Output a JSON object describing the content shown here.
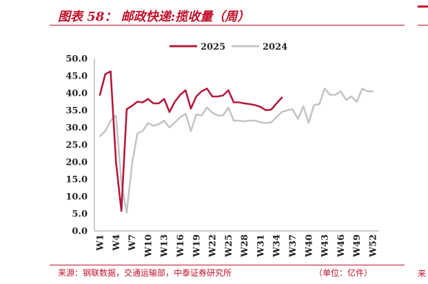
{
  "header": {
    "title": "图表 58：  邮政快递:揽收量（周）"
  },
  "footer": {
    "source": "来源：钢联数据，交通运输部，中泰证券研究所",
    "unit": "（单位：亿件）",
    "right_fragment": "来"
  },
  "chart_data": {
    "type": "line",
    "title": "",
    "xlabel": "",
    "ylabel": "",
    "ylim": [
      0,
      50
    ],
    "yticks": [
      "0.0",
      "5.0",
      "10.0",
      "15.0",
      "20.0",
      "25.0",
      "30.0",
      "35.0",
      "40.0",
      "45.0",
      "50.0"
    ],
    "x_tick_labels": [
      "W1",
      "W4",
      "W7",
      "W10",
      "W13",
      "W16",
      "W19",
      "W22",
      "W25",
      "W28",
      "W31",
      "W34",
      "W37",
      "W40",
      "W43",
      "W46",
      "W49",
      "W52"
    ],
    "x_weeks": [
      1,
      2,
      3,
      4,
      5,
      6,
      7,
      8,
      9,
      10,
      11,
      12,
      13,
      14,
      15,
      16,
      17,
      18,
      19,
      20,
      21,
      22,
      23,
      24,
      25,
      26,
      27,
      28,
      29,
      30,
      31,
      32,
      33,
      34,
      35,
      36,
      37,
      38,
      39,
      40,
      41,
      42,
      43,
      44,
      45,
      46,
      47,
      48,
      49,
      50,
      51,
      52
    ],
    "legend_position": "top-center",
    "grid": false,
    "series": [
      {
        "name": "2025",
        "color": "#b5163b",
        "values": [
          39.5,
          45.5,
          46.3,
          20.0,
          5.8,
          35.3,
          36.3,
          37.5,
          37.3,
          38.3,
          37.0,
          37.0,
          38.3,
          34.5,
          37.5,
          39.5,
          40.8,
          35.5,
          39.0,
          40.5,
          41.3,
          39.0,
          39.0,
          39.3,
          40.8,
          37.3,
          37.3,
          37.0,
          36.8,
          36.5,
          36.0,
          35.0,
          35.2,
          37.0,
          38.7
        ]
      },
      {
        "name": "2024",
        "color": "#c4c4c4",
        "values": [
          27.5,
          29.0,
          32.0,
          33.5,
          14.0,
          5.3,
          19.5,
          28.3,
          29.0,
          31.3,
          30.5,
          31.0,
          32.0,
          30.0,
          31.5,
          33.0,
          34.0,
          29.0,
          33.8,
          33.5,
          35.8,
          34.3,
          33.5,
          33.5,
          35.8,
          32.0,
          32.0,
          31.8,
          32.0,
          32.0,
          31.5,
          31.3,
          31.5,
          33.0,
          34.5,
          35.0,
          35.3,
          32.5,
          36.2,
          31.3,
          36.5,
          36.8,
          41.3,
          39.5,
          39.5,
          40.5,
          38.0,
          39.0,
          37.5,
          41.3,
          40.5,
          40.5
        ]
      }
    ]
  }
}
